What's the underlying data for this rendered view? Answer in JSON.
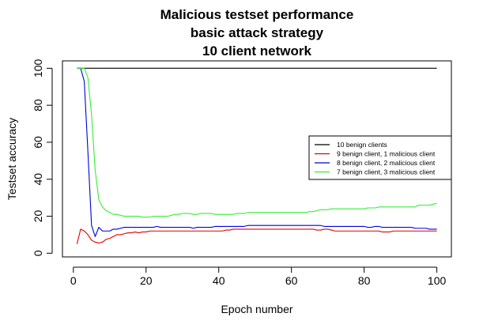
{
  "chart_data": {
    "type": "line",
    "title_lines": [
      "Malicious testset performance",
      "basic attack strategy",
      "10 client network"
    ],
    "xlabel": "Epoch number",
    "ylabel": "Testset accuracy",
    "xlim": [
      -3,
      104
    ],
    "ylim": [
      -2,
      104
    ],
    "x_ticks": [
      0,
      20,
      40,
      60,
      80,
      100
    ],
    "y_ticks": [
      0,
      20,
      40,
      60,
      80,
      100
    ],
    "legend_position": "right",
    "x": [
      1,
      2,
      3,
      4,
      5,
      6,
      7,
      8,
      9,
      10,
      11,
      12,
      13,
      14,
      15,
      16,
      17,
      18,
      19,
      20,
      21,
      22,
      23,
      24,
      25,
      26,
      27,
      28,
      29,
      30,
      31,
      32,
      33,
      34,
      35,
      36,
      37,
      38,
      39,
      40,
      41,
      42,
      43,
      44,
      45,
      46,
      47,
      48,
      49,
      50,
      51,
      52,
      53,
      54,
      55,
      56,
      57,
      58,
      59,
      60,
      61,
      62,
      63,
      64,
      65,
      66,
      67,
      68,
      69,
      70,
      71,
      72,
      73,
      74,
      75,
      76,
      77,
      78,
      79,
      80,
      81,
      82,
      83,
      84,
      85,
      86,
      87,
      88,
      89,
      90,
      91,
      92,
      93,
      94,
      95,
      96,
      97,
      98,
      99,
      100
    ],
    "series": [
      {
        "name": "10 benign clients",
        "color": "#000000",
        "values": [
          100,
          100,
          100,
          100,
          100,
          100,
          100,
          100,
          100,
          100,
          100,
          100,
          100,
          100,
          100,
          100,
          100,
          100,
          100,
          100,
          100,
          100,
          100,
          100,
          100,
          100,
          100,
          100,
          100,
          100,
          100,
          100,
          100,
          100,
          100,
          100,
          100,
          100,
          100,
          100,
          100,
          100,
          100,
          100,
          100,
          100,
          100,
          100,
          100,
          100,
          100,
          100,
          100,
          100,
          100,
          100,
          100,
          100,
          100,
          100,
          100,
          100,
          100,
          100,
          100,
          100,
          100,
          100,
          100,
          100,
          100,
          100,
          100,
          100,
          100,
          100,
          100,
          100,
          100,
          100,
          100,
          100,
          100,
          100,
          100,
          100,
          100,
          100,
          100,
          100,
          100,
          100,
          100,
          100,
          100,
          100,
          100,
          100,
          100,
          100
        ]
      },
      {
        "name": "9 benign client, 1 malicious client",
        "color": "#e00000",
        "values": [
          5,
          13,
          12,
          10,
          7,
          6,
          5.5,
          6,
          7.5,
          8,
          9,
          10,
          10,
          10.5,
          11,
          11,
          11.5,
          11,
          11.5,
          11.5,
          12,
          12,
          12,
          12,
          12,
          12,
          12,
          12,
          12,
          12,
          12,
          12,
          12,
          12,
          12,
          12,
          12,
          12,
          12,
          12,
          12,
          12.5,
          12.5,
          13,
          13,
          13,
          13,
          13,
          13,
          13,
          13,
          13,
          13,
          13,
          13,
          13,
          13,
          13,
          13,
          13,
          13,
          13,
          13,
          13,
          13,
          13,
          12.5,
          12.5,
          13,
          13,
          12.5,
          12,
          12,
          12,
          12,
          12,
          12,
          12,
          12,
          12,
          12,
          12,
          12,
          12,
          11.5,
          11.5,
          11.5,
          12,
          12,
          12,
          12,
          12,
          12,
          12,
          12,
          12,
          12,
          12,
          12,
          12
        ]
      },
      {
        "name": "8 benign client, 2 malicious client",
        "color": "#0000e0",
        "values": [
          100,
          100,
          93,
          55,
          15,
          9,
          14,
          12,
          12,
          12,
          13,
          13,
          13.5,
          14,
          14,
          14,
          14,
          14,
          14,
          14,
          14,
          14,
          14.5,
          14,
          14,
          14,
          14,
          14,
          14,
          14,
          14,
          14,
          13.5,
          14,
          14,
          14,
          14,
          14,
          14.5,
          14.5,
          14.5,
          14.5,
          14.5,
          14.5,
          14.5,
          14.5,
          14.5,
          15,
          15,
          15,
          15,
          15,
          15,
          15,
          15,
          15,
          15,
          15,
          15,
          15,
          15,
          15,
          15,
          15,
          15,
          15,
          15,
          15,
          14.5,
          14.5,
          14.5,
          14.5,
          14.5,
          14.5,
          14.5,
          14.5,
          14.5,
          14.5,
          14.5,
          14.5,
          14,
          14,
          14.5,
          14.5,
          14,
          14,
          14,
          14,
          14,
          14,
          14,
          14,
          14,
          13.5,
          13.5,
          13.5,
          13.5,
          13,
          13,
          13
        ]
      },
      {
        "name": "7 benign client, 3 malicious client",
        "color": "#33ee33",
        "values": [
          100,
          100,
          100,
          95,
          75,
          45,
          29,
          25,
          23,
          22,
          21,
          21,
          20.5,
          20,
          20,
          20,
          20,
          20,
          19.5,
          19.5,
          19.5,
          20,
          20,
          20,
          20,
          20,
          20.5,
          21,
          21,
          21.5,
          21.5,
          21.5,
          21,
          21,
          21.5,
          21.5,
          21.5,
          21.5,
          21,
          21,
          21,
          21,
          21,
          21,
          21.5,
          21.5,
          21.5,
          22,
          22,
          22,
          22,
          22,
          22,
          22,
          22,
          22,
          22,
          22,
          22,
          22,
          22,
          22,
          22,
          22,
          22.5,
          22.5,
          23,
          23.5,
          23.5,
          23.5,
          24,
          24,
          24,
          24,
          24,
          24,
          24,
          24,
          24,
          24,
          24.5,
          24.5,
          24.5,
          25,
          25,
          25,
          25,
          25,
          25,
          25,
          25,
          25,
          25,
          25,
          26,
          26,
          26,
          26,
          26.5,
          27
        ]
      }
    ]
  }
}
